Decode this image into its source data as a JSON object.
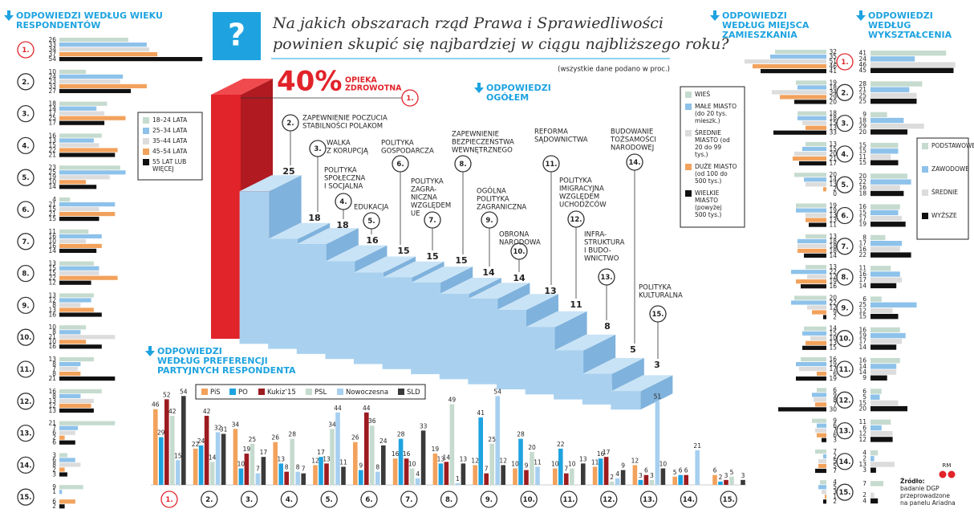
{
  "header": {
    "icon": "?",
    "title": [
      "Na jakich obszarach rząd Prawa i Sprawiedliwości",
      "powinien skupić się najbardziej w ciągu najbliższego roku?"
    ],
    "note": "(wszystkie dane podano w proc.)"
  },
  "item_numbers": [
    "1.",
    "2.",
    "3.",
    "4.",
    "5.",
    "6.",
    "7.",
    "8.",
    "9.",
    "10.",
    "11.",
    "12.",
    "13.",
    "14.",
    "15."
  ],
  "source": [
    "Źródło:",
    "badanie DGP",
    "przeprowadzone",
    "na panelu Ariadna"
  ],
  "credit": "RM",
  "chart_data": [
    {
      "type": "bar3d",
      "title": [
        "ODPOWIEDZI",
        "OGÓŁEM"
      ],
      "categories": [
        [
          "OPIEKA",
          "ZDROWOTNA"
        ],
        [
          "ZAPEWNIENIE POCZUCIA",
          "STABILNOŚCI POLAKOM"
        ],
        [
          "WALKA",
          "Z KORUPCJĄ"
        ],
        [
          "POLITYKA",
          "SPOŁECZNA",
          "I SOCJALNA"
        ],
        [
          "EDUKACJA"
        ],
        [
          "POLITYKA",
          "GOSPODARCZA"
        ],
        [
          "POLITYKA",
          "ZAGRA-",
          "NICZNA",
          "WZGLĘDEM",
          "UE"
        ],
        [
          "ZAPEWNIENIE",
          "BEZPIECZEŃSTWA",
          "WEWNĘTRZNEGO"
        ],
        [
          "OGÓLNA",
          "POLITYKA",
          "ZAGRANICZNA"
        ],
        [
          "OBRONA",
          "NARODOWA"
        ],
        [
          "REFORMA",
          "SĄDOWNICTWA"
        ],
        [
          "POLITYKA",
          "IMIGRACYJNA",
          "WZGLĘDEM",
          "UCHODŹCÓW"
        ],
        [
          "INFRA-",
          "STRUKTURA",
          "I BUDO-",
          "WNICTWO"
        ],
        [
          "BUDOWANIE",
          "TOŻSAMOŚCI",
          "NARODOWEJ"
        ],
        [
          "POLITYKA",
          "KULTURALNA"
        ]
      ],
      "values": [
        40,
        25,
        18,
        18,
        16,
        15,
        15,
        15,
        14,
        14,
        13,
        11,
        8,
        5,
        3
      ],
      "value_labels": [
        "40%",
        "25",
        "18",
        "18",
        "16",
        "15",
        "15",
        "15",
        "14",
        "14",
        "13",
        "11",
        "8",
        "5",
        "3"
      ],
      "colors": [
        "#e1232a",
        "#a9d1ef"
      ]
    },
    {
      "type": "grouped-bar",
      "title": [
        "ODPOWIEDZI",
        "WEDŁUG PREFERENCJI",
        "PARTYJNYCH RESPONDENTA"
      ],
      "series": [
        {
          "name": "PiS",
          "color": "#f2a25c",
          "values": [
            46,
            22,
            34,
            26,
            12,
            26,
            16,
            19,
            12,
            10,
            10,
            11,
            12,
            5,
            6
          ]
        },
        {
          "name": "PO",
          "color": "#1ea3e0",
          "values": [
            29,
            24,
            10,
            13,
            17,
            9,
            28,
            13,
            41,
            28,
            22,
            16,
            3,
            6,
            2
          ]
        },
        {
          "name": "Kukiz’15",
          "color": "#9b1b1f",
          "values": [
            52,
            42,
            19,
            8,
            13,
            44,
            16,
            14,
            7,
            9,
            7,
            17,
            6,
            6,
            3
          ]
        },
        {
          "name": "PSL",
          "color": "#c6dbcf",
          "values": [
            42,
            14,
            25,
            28,
            34,
            36,
            10,
            49,
            25,
            20,
            10,
            2,
            3,
            null,
            5
          ]
        },
        {
          "name": "Nowoczesna",
          "color": "#a6cff0",
          "values": [
            15,
            32,
            7,
            8,
            44,
            8,
            4,
            1,
            54,
            11,
            null,
            4,
            51,
            21,
            null
          ]
        },
        {
          "name": "SLD",
          "color": "#3a3a3a",
          "values": [
            54,
            31,
            17,
            7,
            11,
            24,
            33,
            13,
            12,
            null,
            13,
            9,
            10,
            null,
            3
          ]
        }
      ]
    },
    {
      "type": "hbar",
      "title": [
        "ODPOWIEDZI WEDŁUG WIEKU",
        "RESPONDENTÓW"
      ],
      "series": [
        {
          "name": "18–24 LATA",
          "color": "#c6dbcf",
          "values": [
            26,
            10,
            18,
            16,
            23,
            4,
            11,
            13,
            13,
            10,
            13,
            16,
            21,
            3,
            9
          ]
        },
        {
          "name": "25–34 LATA",
          "color": "#8dc2ea",
          "values": [
            33,
            24,
            14,
            13,
            25,
            21,
            16,
            15,
            12,
            8,
            8,
            8,
            7,
            6,
            1
          ]
        },
        {
          "name": "35–44 LATA",
          "color": "#dcdcdc",
          "values": [
            34,
            23,
            17,
            15,
            19,
            15,
            10,
            15,
            8,
            21,
            7,
            13,
            6,
            8,
            null
          ]
        },
        {
          "name": "45–54 LATA",
          "color": "#f2a25c",
          "values": [
            37,
            33,
            25,
            22,
            10,
            21,
            16,
            22,
            13,
            10,
            8,
            12,
            2,
            2,
            6
          ]
        },
        {
          "name": "55 LAT LUB WIĘCEJ",
          "color": "#111111",
          "values": [
            54,
            27,
            17,
            21,
            14,
            15,
            14,
            12,
            16,
            16,
            21,
            13,
            6,
            3,
            2
          ]
        }
      ]
    },
    {
      "type": "hbar",
      "title": [
        "ODPOWIEDZI",
        "WEDŁUG MIEJSCA",
        "ZAMIESZKANIA"
      ],
      "series": [
        {
          "name": "WIEŚ",
          "color": "#c6dbcf",
          "values": [
            32,
            19,
            18,
            13,
            20,
            19,
            13,
            13,
            20,
            14,
            16,
            6,
            9,
            7,
            4
          ]
        },
        {
          "name": "MAŁE MIASTO (do 20 tys. mieszk.)",
          "color": "#8dc2ea",
          "values": [
            35,
            18,
            18,
            15,
            14,
            19,
            18,
            22,
            22,
            15,
            19,
            9,
            6,
            2,
            5
          ]
        },
        {
          "name": "ŚREDNIE MIASTO (od 20 do 99 tys.)",
          "color": "#dcdcdc",
          "values": [
            51,
            34,
            15,
            20,
            13,
            13,
            18,
            12,
            12,
            10,
            17,
            8,
            7,
            5,
            3
          ]
        },
        {
          "name": "DUŻE MIASTO (od 100 do 500 tys.)",
          "color": "#f2a25c",
          "values": [
            46,
            29,
            13,
            21,
            2,
            13,
            18,
            19,
            9,
            13,
            6,
            7,
            6,
            5,
            1
          ]
        },
        {
          "name": "WIELKIE MIASTO (powyżej 500 tys.)",
          "color": "#111111",
          "values": [
            41,
            20,
            33,
            17,
            0,
            11,
            14,
            16,
            2,
            15,
            19,
            30,
            3,
            7,
            2
          ]
        }
      ]
    },
    {
      "type": "hbar",
      "title": [
        "ODPOWIEDZI",
        "WEDŁUG",
        "WYKSZTAŁCENIA"
      ],
      "series": [
        {
          "name": "PODSTAWOWE",
          "color": "#c6dbcf",
          "values": [
            41,
            28,
            9,
            15,
            20,
            16,
            8,
            11,
            6,
            16,
            16,
            6,
            11,
            4,
            7
          ]
        },
        {
          "name": "ZAWODOWE",
          "color": "#8dc2ea",
          "values": [
            24,
            21,
            18,
            15,
            22,
            15,
            17,
            16,
            25,
            19,
            14,
            5,
            6,
            2,
            null
          ]
        },
        {
          "name": "ŚREDNIE",
          "color": "#dcdcdc",
          "values": [
            46,
            25,
            29,
            11,
            16,
            17,
            16,
            17,
            12,
            17,
            14,
            15,
            12,
            13,
            2
          ]
        },
        {
          "name": "WYŻSZE",
          "color": "#111111",
          "values": [
            45,
            25,
            20,
            15,
            18,
            19,
            22,
            14,
            15,
            14,
            9,
            20,
            12,
            3,
            4
          ]
        }
      ]
    }
  ]
}
